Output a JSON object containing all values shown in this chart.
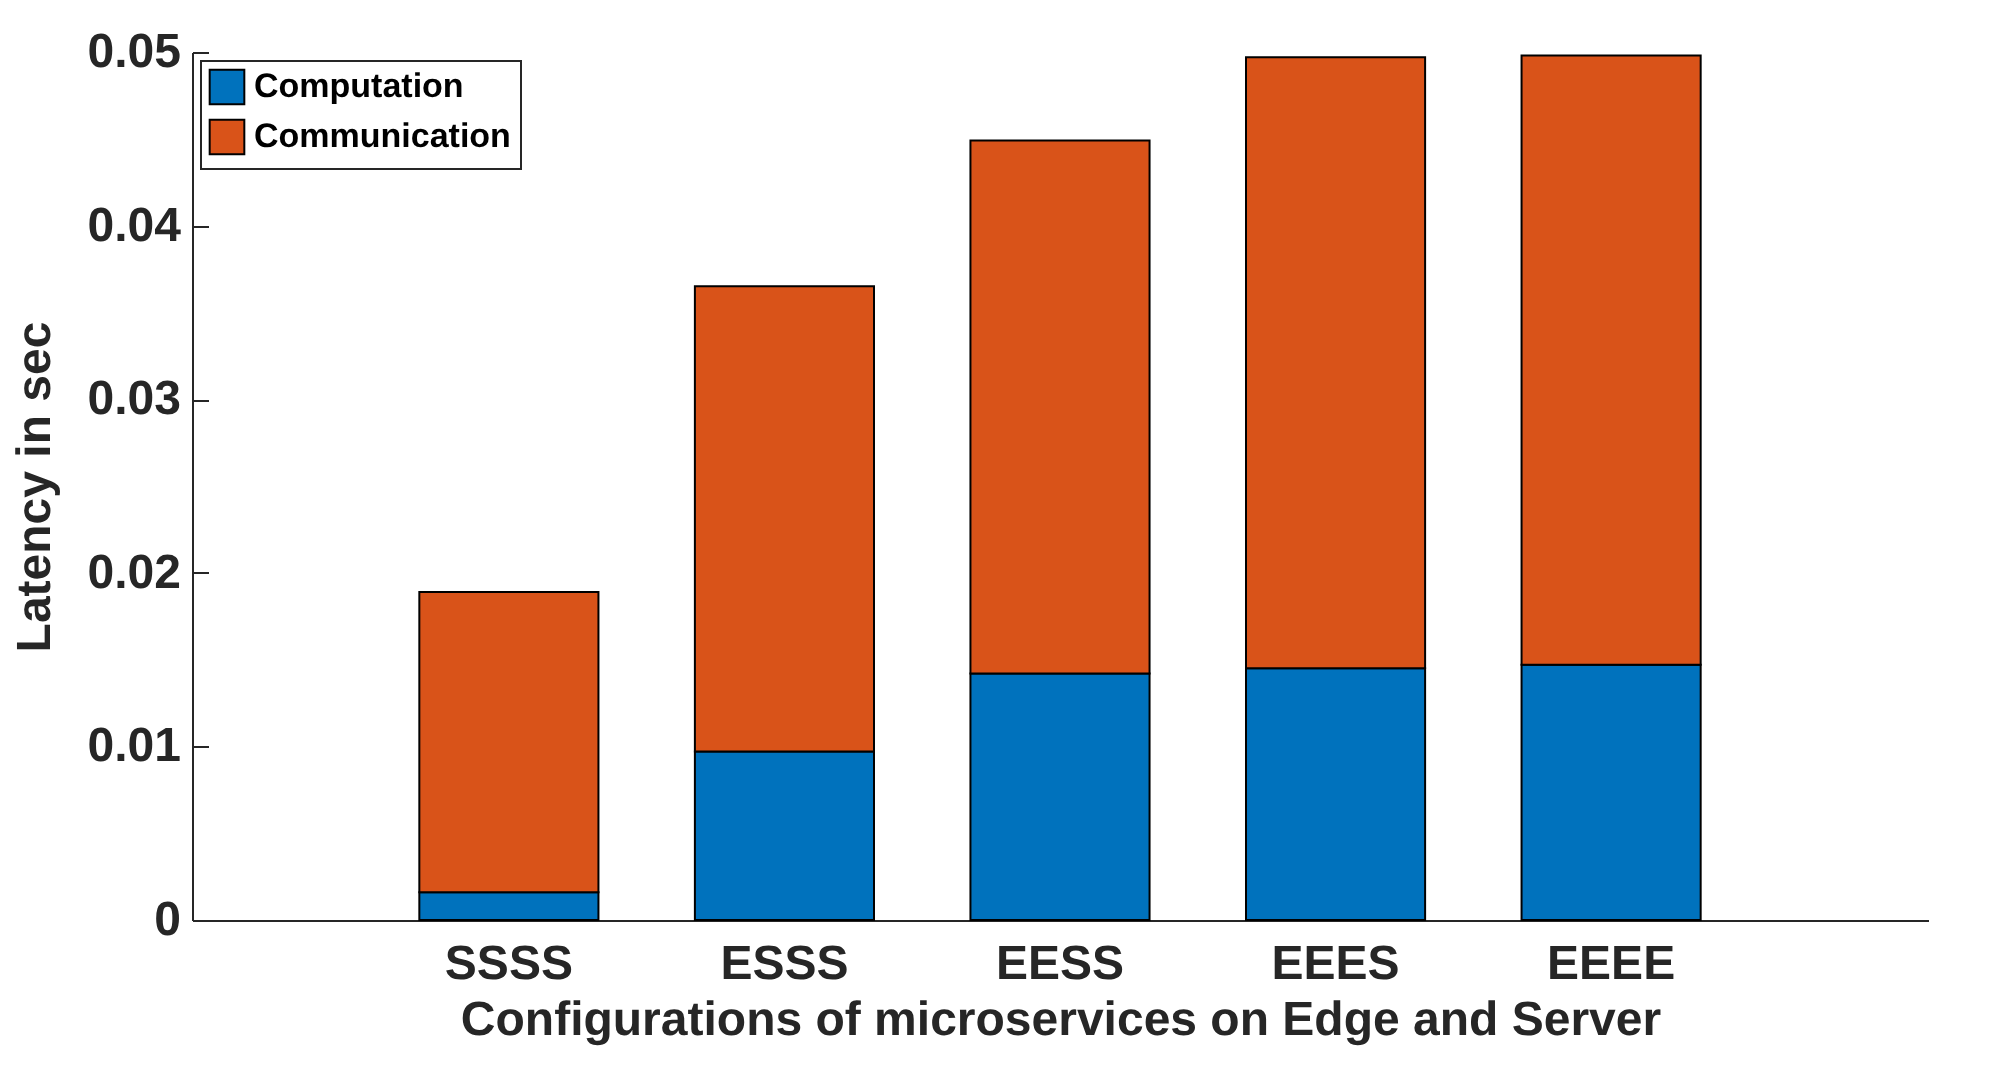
{
  "chart_data": {
    "type": "bar",
    "stacked": true,
    "xlabel": "Configurations of microservices on Edge and Server",
    "ylabel": "Latency in sec",
    "categories": [
      "SSSS",
      "ESSS",
      "EESS",
      "EEES",
      "EEEE"
    ],
    "series": [
      {
        "name": "Computation",
        "color": "#0072bd",
        "values": [
          0.0016,
          0.0097,
          0.0142,
          0.0145,
          0.0147
        ]
      },
      {
        "name": "Communication",
        "color": "#d95319",
        "values": [
          0.0173,
          0.0268,
          0.0307,
          0.0352,
          0.0351
        ]
      }
    ],
    "ylim": [
      0,
      0.05
    ],
    "yticks": [
      0,
      0.01,
      0.02,
      0.03,
      0.04,
      0.05
    ],
    "grid": false,
    "legend": "top left"
  }
}
